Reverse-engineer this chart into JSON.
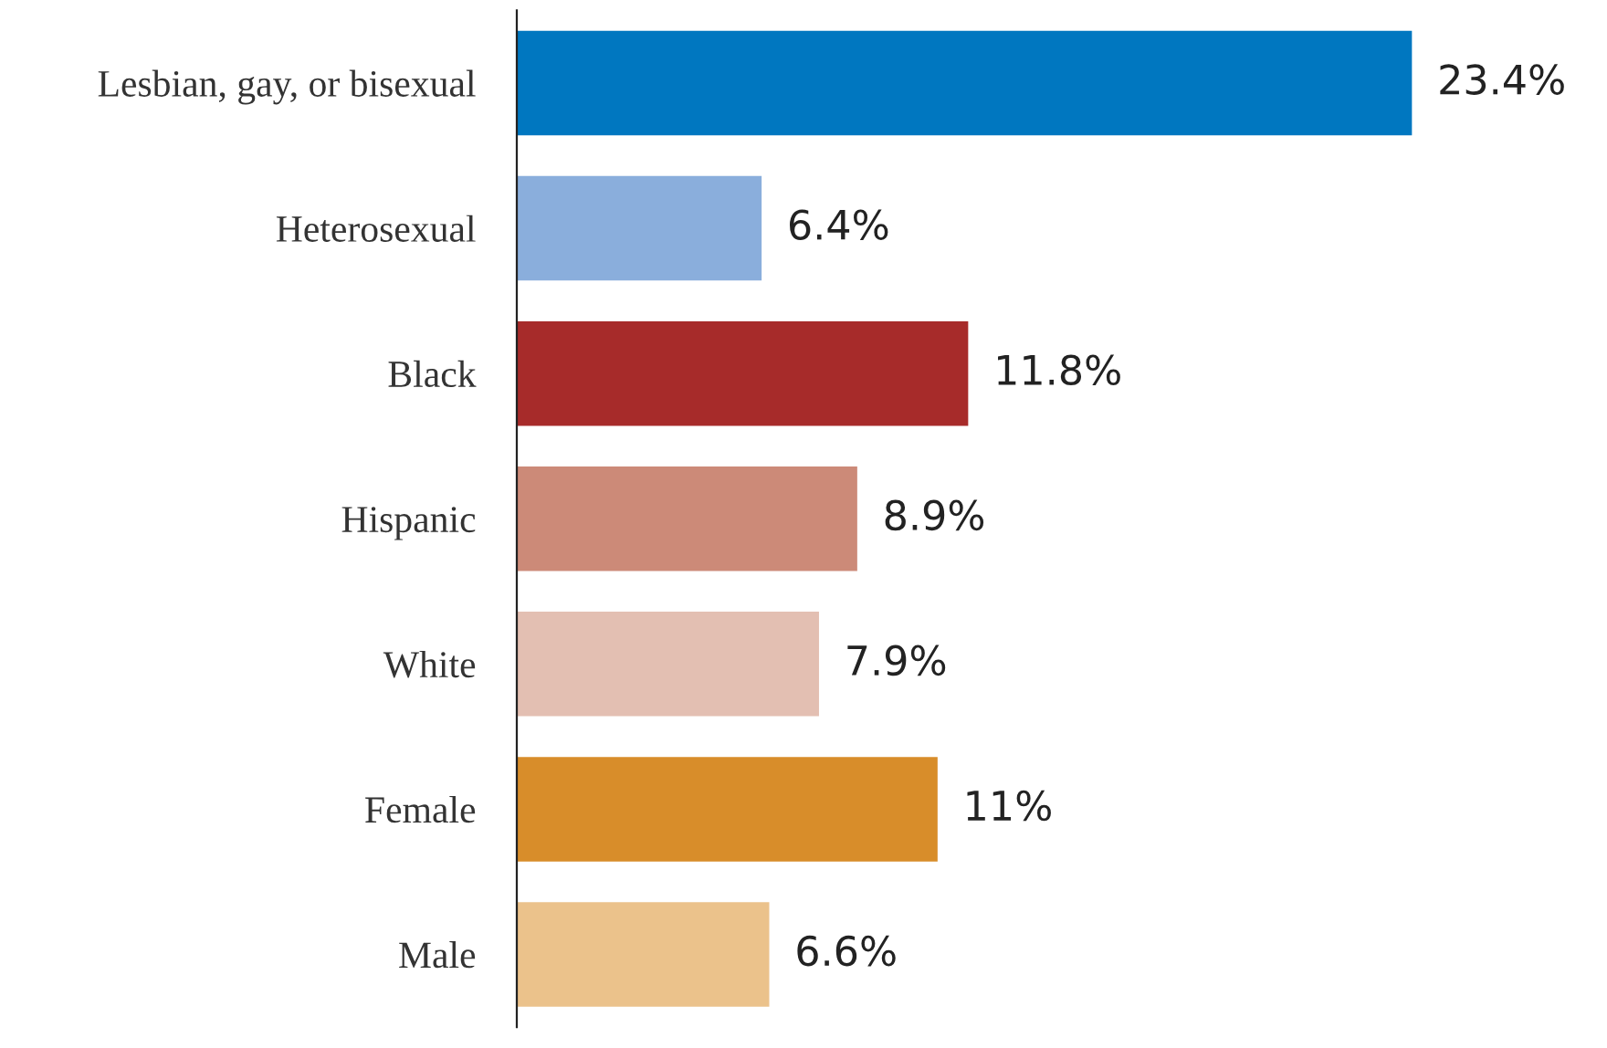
{
  "chart_data": {
    "type": "bar",
    "orientation": "horizontal",
    "categories": [
      "Lesbian, gay, or bisexual",
      "Heterosexual",
      "Black",
      "Hispanic",
      "White",
      "Female",
      "Male"
    ],
    "values": [
      23.4,
      6.4,
      11.8,
      8.9,
      7.9,
      11,
      6.6
    ],
    "value_labels": [
      "23.4%",
      "6.4%",
      "11.8%",
      "8.9%",
      "7.9%",
      "11%",
      "6.6%"
    ],
    "colors": [
      "#0077c0",
      "#8aaedc",
      "#a72b2a",
      "#cc8a78",
      "#e3bfb2",
      "#d88d2a",
      "#ebc28b"
    ]
  }
}
